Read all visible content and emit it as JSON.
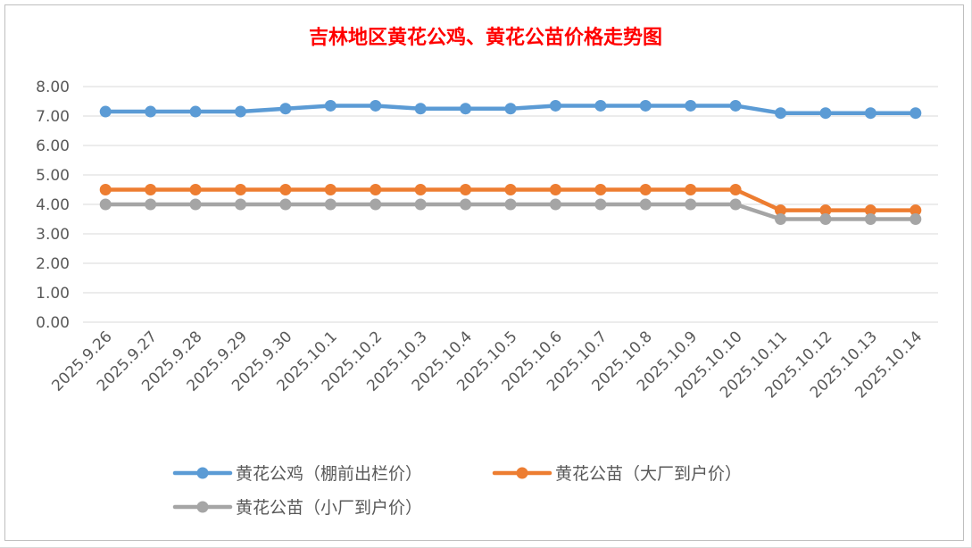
{
  "chart_data": {
    "type": "line",
    "title": "吉林地区黄花公鸡、黄花公苗价格走势图",
    "title_color": "#ff0000",
    "categories": [
      "2025.9.26",
      "2025.9.27",
      "2025.9.28",
      "2025.9.29",
      "2025.9.30",
      "2025.10.1",
      "2025.10.2",
      "2025.10.3",
      "2025.10.4",
      "2025.10.5",
      "2025.10.6",
      "2025.10.7",
      "2025.10.8",
      "2025.10.9",
      "2025.10.10",
      "2025.10.11",
      "2025.10.12",
      "2025.10.13",
      "2025.10.14"
    ],
    "y_ticks": [
      "0.00",
      "1.00",
      "2.00",
      "3.00",
      "4.00",
      "5.00",
      "6.00",
      "7.00",
      "8.00"
    ],
    "ylim": [
      0,
      8
    ],
    "grid": true,
    "legend_position": "bottom",
    "series": [
      {
        "name": "黄花公鸡（棚前出栏价）",
        "color": "#5b9bd5",
        "values": [
          7.15,
          7.15,
          7.15,
          7.15,
          7.25,
          7.35,
          7.35,
          7.25,
          7.25,
          7.25,
          7.35,
          7.35,
          7.35,
          7.35,
          7.35,
          7.1,
          7.1,
          7.1,
          7.1
        ]
      },
      {
        "name": "黄花公苗（大厂到户价）",
        "color": "#ed7d31",
        "values": [
          4.5,
          4.5,
          4.5,
          4.5,
          4.5,
          4.5,
          4.5,
          4.5,
          4.5,
          4.5,
          4.5,
          4.5,
          4.5,
          4.5,
          4.5,
          3.8,
          3.8,
          3.8,
          3.8
        ]
      },
      {
        "name": "黄花公苗（小厂到户价）",
        "color": "#a5a5a5",
        "values": [
          4.0,
          4.0,
          4.0,
          4.0,
          4.0,
          4.0,
          4.0,
          4.0,
          4.0,
          4.0,
          4.0,
          4.0,
          4.0,
          4.0,
          4.0,
          3.5,
          3.5,
          3.5,
          3.5
        ]
      }
    ]
  }
}
